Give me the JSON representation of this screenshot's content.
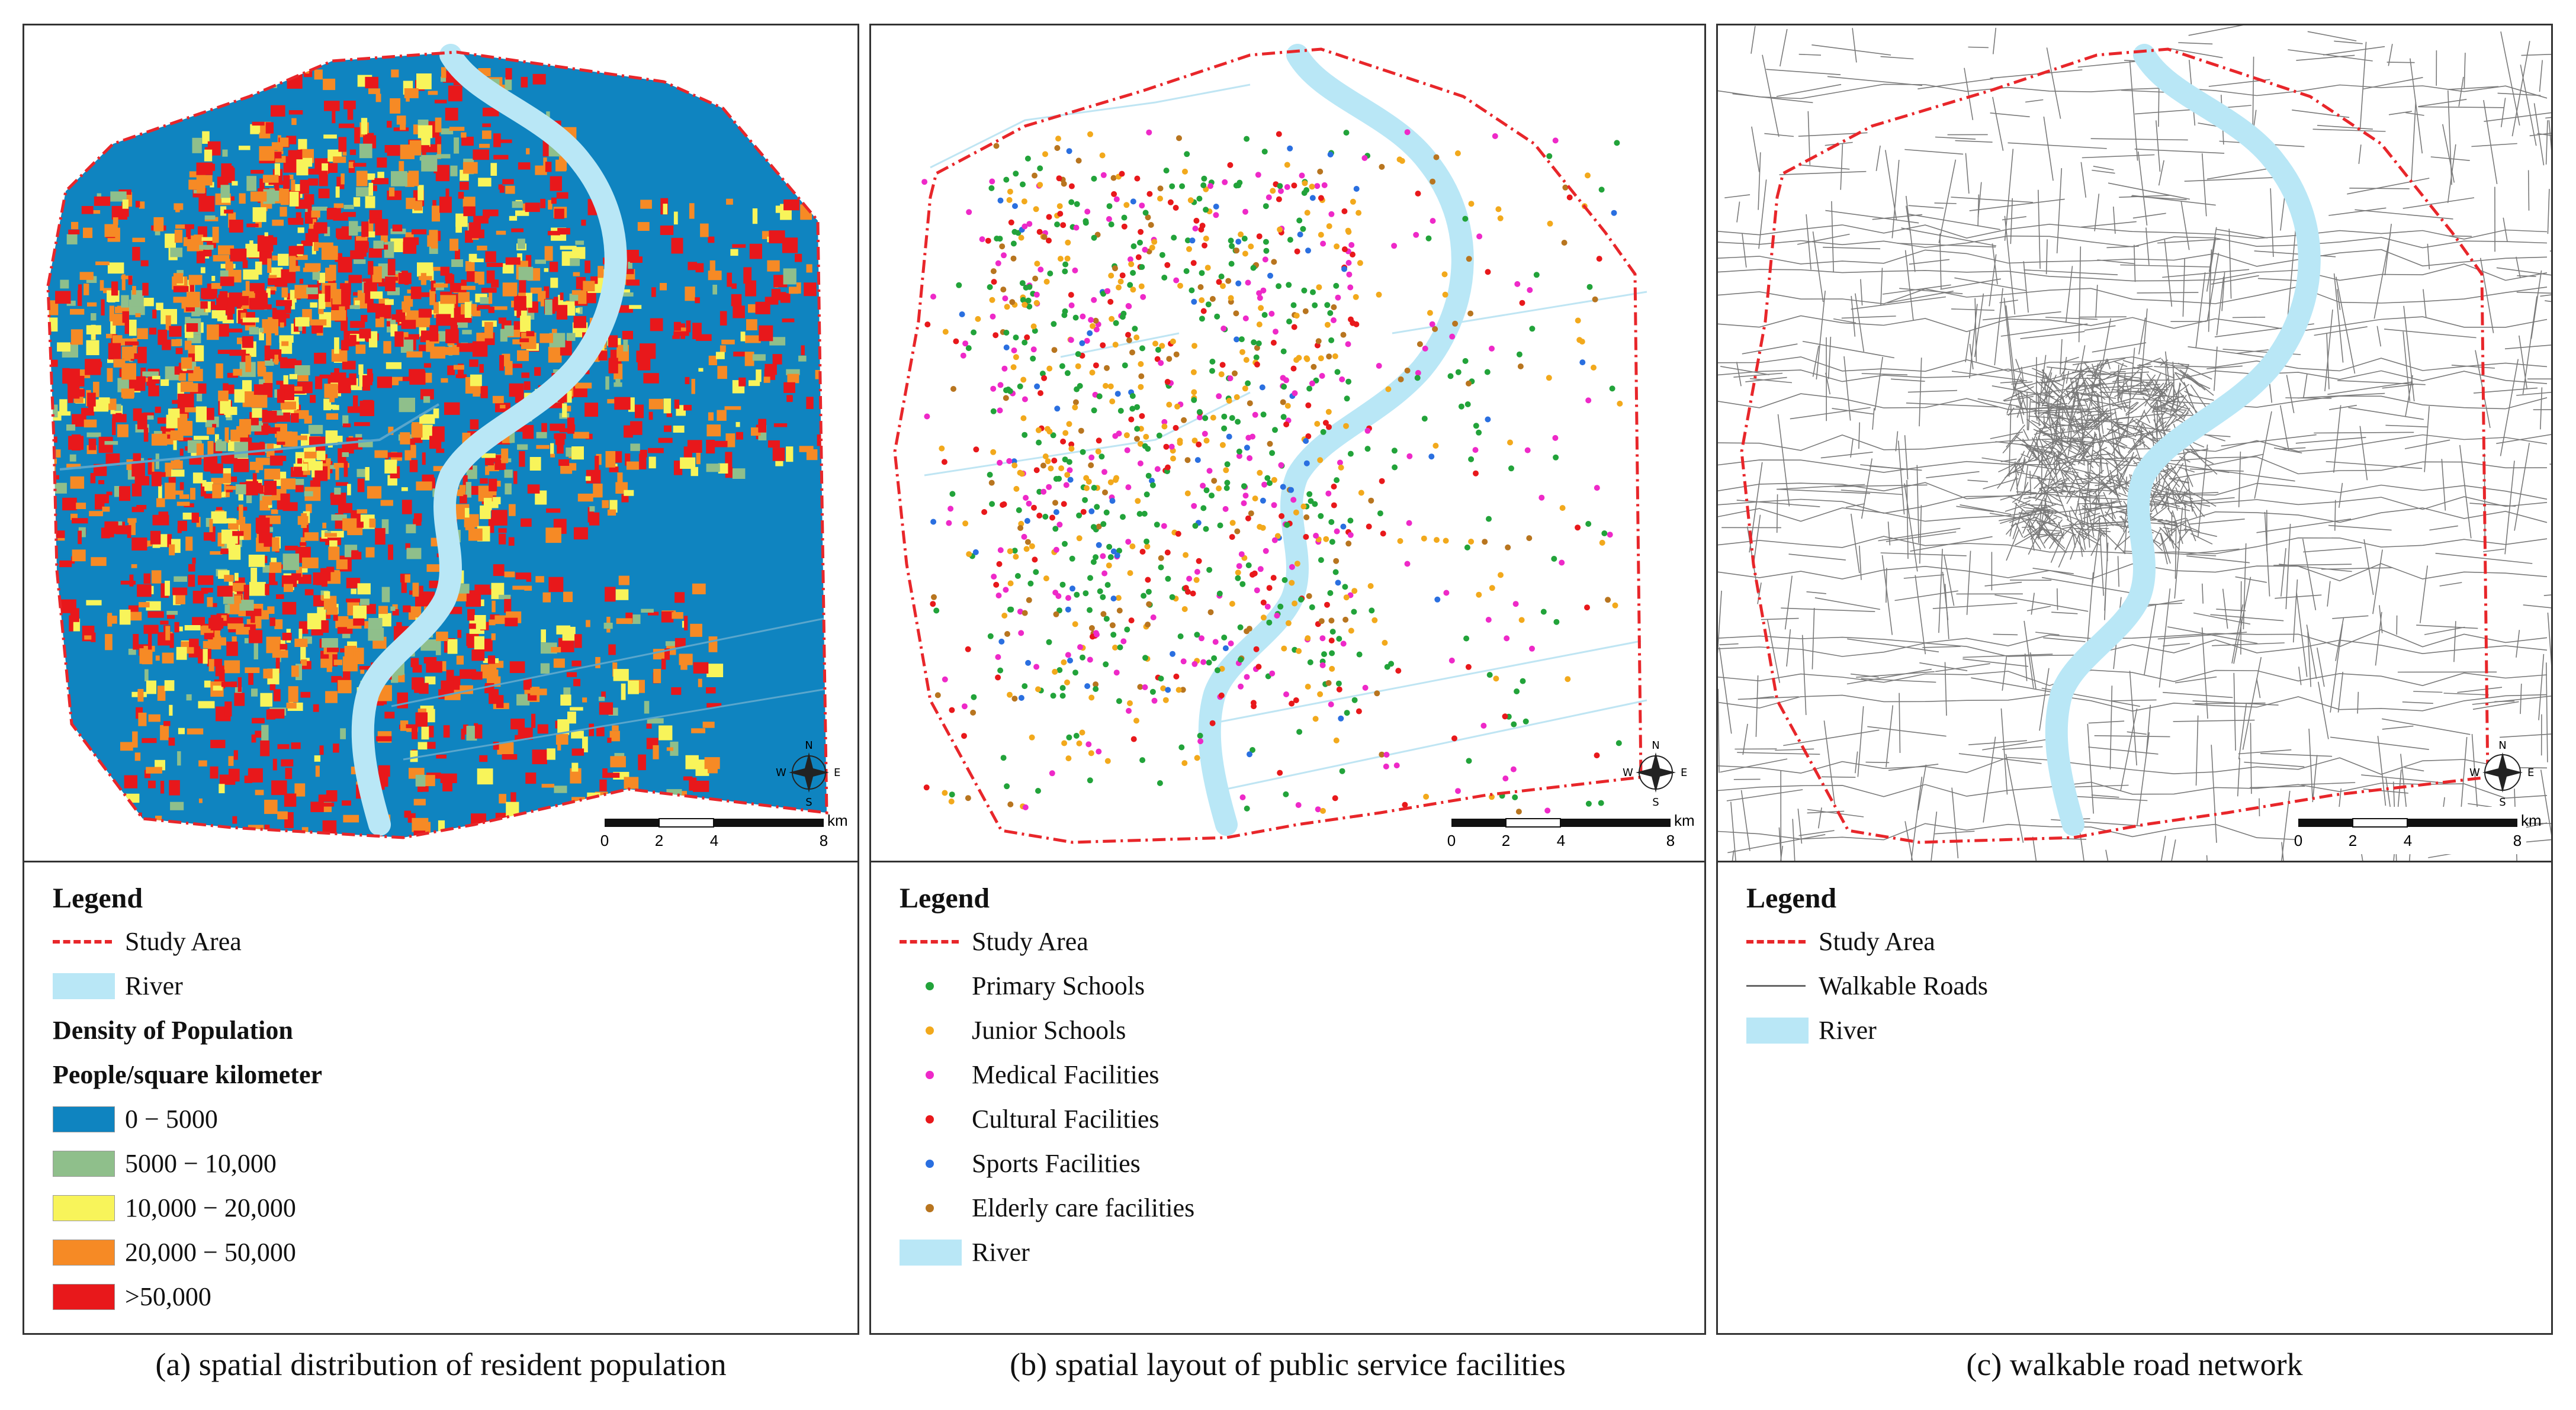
{
  "panels": [
    {
      "caption": "(a) spatial distribution of resident population",
      "legend_title": "Legend",
      "items": [
        {
          "type": "dashline",
          "label": "Study Area",
          "color": "#e8262a"
        },
        {
          "type": "river",
          "label": "River",
          "color": "#b9e7f6"
        },
        {
          "type": "heading",
          "label": "Density of Population"
        },
        {
          "type": "heading",
          "label": "People/square kilometer"
        },
        {
          "type": "swatch",
          "label": "0 − 5000",
          "color": "#0f84c0"
        },
        {
          "type": "swatch",
          "label": "5000 − 10,000",
          "color": "#8fbf8b"
        },
        {
          "type": "swatch",
          "label": "10,000 − 20,000",
          "color": "#f8f45a"
        },
        {
          "type": "swatch",
          "label": "20,000 − 50,000",
          "color": "#f68a25"
        },
        {
          "type": "swatch",
          "label": ">50,000",
          "color": "#e8181b"
        }
      ]
    },
    {
      "caption": "(b) spatial layout of public service facilities",
      "legend_title": "Legend",
      "items": [
        {
          "type": "dashline",
          "label": "Study Area",
          "color": "#e8262a"
        },
        {
          "type": "dot",
          "label": "Primary Schools",
          "color": "#22a33a"
        },
        {
          "type": "dot",
          "label": "Junior Schools",
          "color": "#f2a91c"
        },
        {
          "type": "dot",
          "label": "Medical Facilities",
          "color": "#ee29c8"
        },
        {
          "type": "dot",
          "label": "Cultural Facilities",
          "color": "#e8181b"
        },
        {
          "type": "dot",
          "label": "Sports Facilities",
          "color": "#2a6fe0"
        },
        {
          "type": "dot",
          "label": "Elderly care facilities",
          "color": "#b8751f"
        },
        {
          "type": "river",
          "label": "River",
          "color": "#b9e7f6"
        }
      ]
    },
    {
      "caption": "(c) walkable road network",
      "legend_title": "Legend",
      "items": [
        {
          "type": "dashline",
          "label": "Study Area",
          "color": "#e8262a"
        },
        {
          "type": "line",
          "label": "Walkable Roads",
          "color": "#666666"
        },
        {
          "type": "river",
          "label": "River",
          "color": "#b9e7f6"
        }
      ]
    }
  ],
  "map_common": {
    "compass": {
      "n": "N",
      "s": "S",
      "e": "E",
      "w": "W"
    },
    "scale": {
      "ticks": [
        "0",
        "2",
        "4",
        "8"
      ],
      "unit": "km"
    }
  }
}
